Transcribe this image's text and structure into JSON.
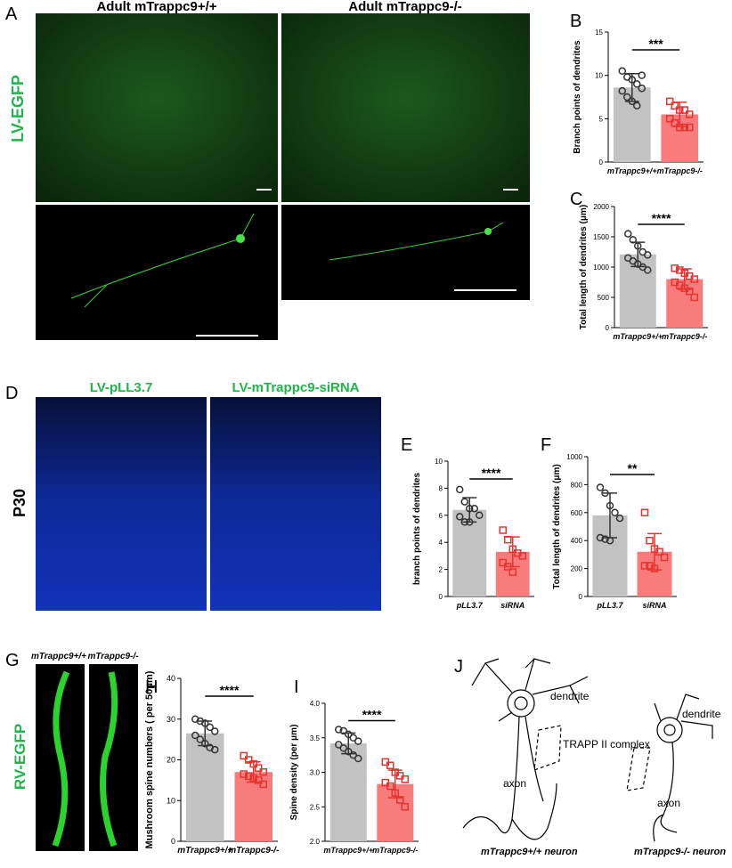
{
  "panels": {
    "a": "A",
    "d": "D",
    "g": "G",
    "j": "J"
  },
  "images": {
    "a_left_title": "Adult  mTrappc9+/+",
    "a_right_title": "Adult  mTrappc9-/-",
    "a_side": "LV-EGFP",
    "d_left_title": "LV-pLL3.7",
    "d_right_title": "LV-mTrappc9-siRNA",
    "d_side": "P30",
    "g_left_title": "mTrappc9+/+",
    "g_right_title": "mTrappc9-/-",
    "g_side": "RV-EGFP"
  },
  "diagram": {
    "left_dendrite": "dendrite",
    "trapp": "TRAPP II complex",
    "left_axon": "axon",
    "left_caption": "mTrappc9+/+ neuron",
    "right_dendrite": "dendrite",
    "right_axon": "axon",
    "right_caption": "mTrappc9-/- neuron"
  },
  "chart_data": [
    {
      "type": "bar",
      "panel": "B",
      "ylabel": "Branch points of dendrites",
      "categories": [
        "mTrappc9+/+",
        "mTrappc9-/-"
      ],
      "values": [
        8.6,
        5.5
      ],
      "errors": [
        1.6,
        1.4
      ],
      "colors": [
        "#c2c2c2",
        "#f87c7c"
      ],
      "point_colors": [
        "#333333",
        "#e8342f"
      ],
      "points": [
        [
          10.5,
          9.8,
          9.5,
          9,
          8.5,
          8.2,
          7.5,
          7,
          6.5,
          10
        ],
        [
          7,
          6.5,
          6,
          6,
          5.5,
          5,
          4.5,
          4,
          4,
          4
        ]
      ],
      "significance": "***",
      "ylim": [
        0,
        15
      ],
      "yticks": [
        0,
        5,
        10,
        15
      ]
    },
    {
      "type": "bar",
      "panel": "C",
      "ylabel": "Total length of dendrites (μm)",
      "categories": [
        "mTrappc9+/+",
        "mTrappc9-/-"
      ],
      "values": [
        1210,
        800
      ],
      "errors": [
        200,
        170
      ],
      "colors": [
        "#c2c2c2",
        "#f87c7c"
      ],
      "point_colors": [
        "#333333",
        "#e8342f"
      ],
      "points": [
        [
          1550,
          1450,
          1350,
          1250,
          1200,
          1150,
          1100,
          1050,
          1000,
          950
        ],
        [
          980,
          950,
          900,
          850,
          800,
          750,
          700,
          650,
          600,
          500
        ]
      ],
      "significance": "****",
      "ylim": [
        0,
        2000
      ],
      "yticks": [
        0,
        500,
        1000,
        1500,
        2000
      ]
    },
    {
      "type": "bar",
      "panel": "E",
      "ylabel": "branch points of dendrites",
      "categories": [
        "pLL3.7",
        "siRNA"
      ],
      "values": [
        6.4,
        3.3
      ],
      "errors": [
        0.9,
        1.1
      ],
      "colors": [
        "#c2c2c2",
        "#f87c7c"
      ],
      "point_colors": [
        "#333333",
        "#e8342f"
      ],
      "points": [
        [
          7.9,
          7,
          6.5,
          6.5,
          6,
          5.9,
          5.5,
          5.5
        ],
        [
          4.9,
          4.2,
          3.5,
          3.2,
          3,
          2.5,
          2.2,
          1.8
        ]
      ],
      "significance": "****",
      "ylim": [
        0,
        10
      ],
      "yticks": [
        0,
        2,
        4,
        6,
        8,
        10
      ]
    },
    {
      "type": "bar",
      "panel": "F",
      "ylabel": "Total length of dendrites (μm)",
      "categories": [
        "pLL3.7",
        "siRNA"
      ],
      "values": [
        580,
        320
      ],
      "errors": [
        160,
        130
      ],
      "colors": [
        "#c2c2c2",
        "#f87c7c"
      ],
      "point_colors": [
        "#333333",
        "#e8342f"
      ],
      "points": [
        [
          780,
          740,
          650,
          600,
          560,
          420,
          410,
          400
        ],
        [
          600,
          400,
          340,
          320,
          280,
          220,
          220,
          200
        ]
      ],
      "significance": "**",
      "ylim": [
        0,
        1000
      ],
      "yticks": [
        0,
        200,
        400,
        600,
        800,
        1000
      ]
    },
    {
      "type": "bar",
      "panel": "H",
      "ylabel": "Mushroom spine numbers ( per 50μm)",
      "categories": [
        "mTrappc9+/+",
        "mTrappc9-/-"
      ],
      "values": [
        26.5,
        17
      ],
      "errors": [
        3,
        2.5
      ],
      "colors": [
        "#c2c2c2",
        "#f87c7c"
      ],
      "point_colors": [
        "#333333",
        "#e8342f"
      ],
      "points": [
        [
          30,
          29.5,
          29,
          28,
          27,
          26,
          25,
          24,
          23,
          22.5
        ],
        [
          21,
          20,
          19,
          18,
          17,
          16.5,
          16,
          15.5,
          15,
          14
        ]
      ],
      "significance": "****",
      "ylim": [
        0,
        40
      ],
      "yticks": [
        0,
        10,
        20,
        30,
        40
      ]
    },
    {
      "type": "bar",
      "panel": "I",
      "ylabel": "Spine density (per μm)",
      "categories": [
        "mTrappc9+/+",
        "mTrappc9-/-"
      ],
      "values": [
        3.42,
        2.83
      ],
      "errors": [
        0.15,
        0.2
      ],
      "colors": [
        "#c2c2c2",
        "#f87c7c"
      ],
      "point_colors": [
        "#333333",
        "#e8342f"
      ],
      "points": [
        [
          3.62,
          3.6,
          3.55,
          3.5,
          3.45,
          3.4,
          3.35,
          3.3,
          3.25,
          3.2
        ],
        [
          3.15,
          3.1,
          3.0,
          2.95,
          2.9,
          2.85,
          2.8,
          2.7,
          2.6,
          2.5
        ]
      ],
      "significance": "****",
      "ylim": [
        2,
        4
      ],
      "yticks": [
        {
          "value": 2,
          "label": "2.0"
        },
        2.5,
        {
          "value": 3,
          "label": "3.0"
        },
        3.5,
        {
          "value": 4,
          "label": "4.0"
        }
      ]
    }
  ]
}
